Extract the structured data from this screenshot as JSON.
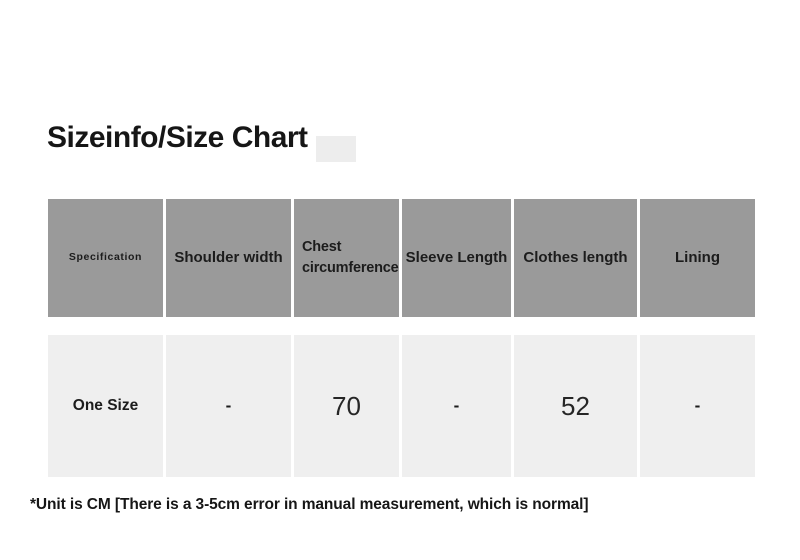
{
  "page": {
    "title": "Sizeinfo/Size Chart",
    "footnote": "*Unit is CM [There is a 3-5cm error in manual measurement, which is normal]"
  },
  "table": {
    "headers": [
      "Specification",
      "Shoulder width",
      "Chest circumference",
      "Sleeve Length",
      "Clothes length",
      "Lining"
    ],
    "rows": [
      {
        "cells": [
          "One Size",
          "-",
          "70",
          "-",
          "52",
          "-"
        ]
      }
    ]
  },
  "colors": {
    "header_bg": "#9a9a9a",
    "row_bg": "#efefef",
    "heading_text": "#161616",
    "body_text": "#1c1c1c",
    "artifact": "#ededed"
  },
  "chart_data": {
    "type": "table",
    "title": "Sizeinfo/Size Chart",
    "columns": [
      "Specification",
      "Shoulder width",
      "Chest circumference",
      "Sleeve Length",
      "Clothes length",
      "Lining"
    ],
    "rows": [
      [
        "One Size",
        "-",
        "70",
        "-",
        "52",
        "-"
      ]
    ],
    "unit": "CM",
    "note": "*Unit is CM [There is a 3-5cm error in manual measurement, which is normal]"
  }
}
